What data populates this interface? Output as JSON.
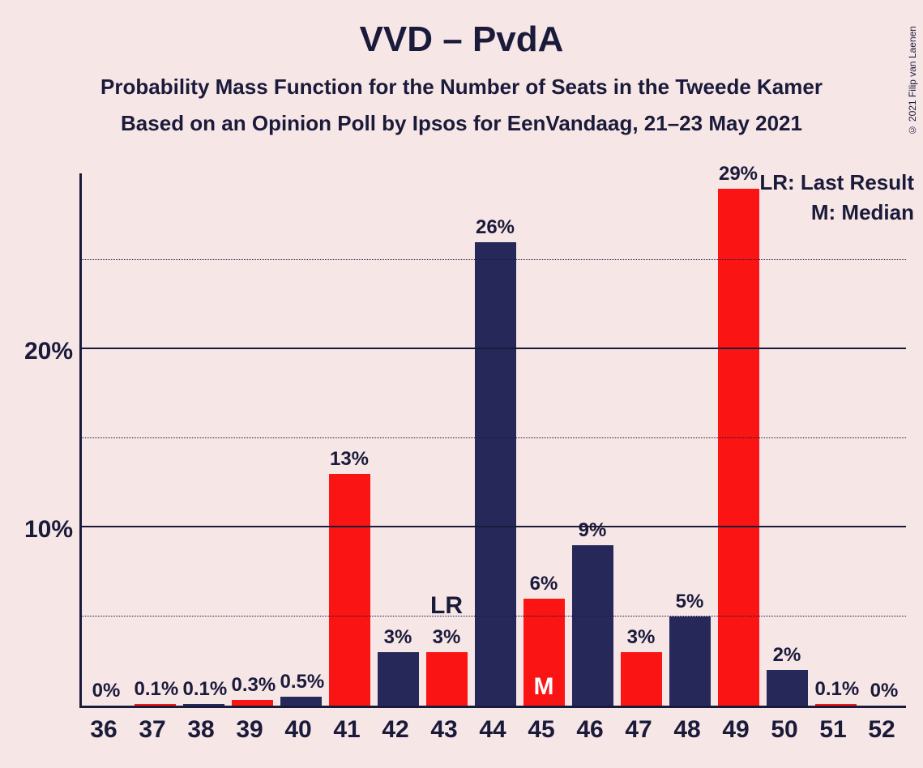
{
  "title": "VVD – PvdA",
  "title_fontsize": 44,
  "subtitle1": "Probability Mass Function for the Number of Seats in the Tweede Kamer",
  "subtitle2": "Based on an Opinion Poll by Ipsos for EenVandaag, 21–23 May 2021",
  "subtitle_fontsize": 26,
  "copyright": "© 2021 Filip van Laenen",
  "background_color": "#f7e6e6",
  "axis_color": "#1a1a3a",
  "text_color": "#1a1a3a",
  "legend": {
    "lr": "LR: Last Result",
    "m": "M: Median",
    "fontsize": 26
  },
  "chart": {
    "type": "bar",
    "ymax": 30,
    "ytick_major": [
      10,
      20
    ],
    "ytick_minor": [
      5,
      15,
      25
    ],
    "ytick_fontsize": 30,
    "xtick_fontsize": 30,
    "barlabel_fontsize": 24,
    "color_blue": "#27285a",
    "color_red": "#fa1414",
    "bar_width": 0.85,
    "categories": [
      36,
      37,
      38,
      39,
      40,
      41,
      42,
      43,
      44,
      45,
      46,
      47,
      48,
      49,
      50,
      51,
      52
    ],
    "bars": [
      {
        "x": 36,
        "label": "0%",
        "value": 0.0,
        "color": "blue"
      },
      {
        "x": 37,
        "label": "0.1%",
        "value": 0.1,
        "color": "red"
      },
      {
        "x": 38,
        "label": "0.1%",
        "value": 0.1,
        "color": "blue"
      },
      {
        "x": 39,
        "label": "0.3%",
        "value": 0.3,
        "color": "red"
      },
      {
        "x": 40,
        "label": "0.5%",
        "value": 0.5,
        "color": "blue"
      },
      {
        "x": 41,
        "label": "13%",
        "value": 13.0,
        "color": "red"
      },
      {
        "x": 42,
        "label": "3%",
        "value": 3.0,
        "color": "blue"
      },
      {
        "x": 43,
        "label": "3%",
        "value": 3.0,
        "color": "red",
        "lr": true
      },
      {
        "x": 44,
        "label": "26%",
        "value": 26.0,
        "color": "blue"
      },
      {
        "x": 45,
        "label": "6%",
        "value": 6.0,
        "color": "red",
        "median": true
      },
      {
        "x": 46,
        "label": "9%",
        "value": 9.0,
        "color": "blue"
      },
      {
        "x": 47,
        "label": "3%",
        "value": 3.0,
        "color": "red"
      },
      {
        "x": 48,
        "label": "5%",
        "value": 5.0,
        "color": "blue"
      },
      {
        "x": 49,
        "label": "29%",
        "value": 29.0,
        "color": "red"
      },
      {
        "x": 50,
        "label": "2%",
        "value": 2.0,
        "color": "blue"
      },
      {
        "x": 51,
        "label": "0.1%",
        "value": 0.1,
        "color": "red"
      },
      {
        "x": 52,
        "label": "0%",
        "value": 0.0,
        "color": "blue"
      }
    ],
    "lr_text": "LR",
    "median_text": "M",
    "lr_fontsize": 30,
    "median_fontsize": 30
  }
}
